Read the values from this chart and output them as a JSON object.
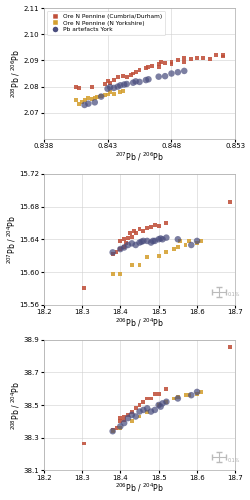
{
  "legend_labels": [
    "Ore N Pennine (Cumbria/Durham)",
    "Ore N Pennine (N Yorkshire)",
    "Pb artefacts York"
  ],
  "colors": {
    "cumbria": "#c0503a",
    "yorkshire": "#d4a030",
    "york": "#4a4e7e"
  },
  "marker_size_ore": 8,
  "marker_size_york": 22,
  "plot1": {
    "xlabel": "$^{207}$Pb / $^{206}$Pb",
    "ylabel": "$^{208}$Pb / $^{206}$Pb",
    "xlim": [
      0.838,
      0.853
    ],
    "ylim": [
      2.06,
      2.11
    ],
    "xticks": [
      0.838,
      0.843,
      0.848,
      0.853
    ],
    "yticks": [
      2.07,
      2.08,
      2.09,
      2.1,
      2.11
    ],
    "cumbria_x": [
      0.8405,
      0.8408,
      0.8418,
      0.8428,
      0.843,
      0.8432,
      0.8435,
      0.8438,
      0.8442,
      0.8445,
      0.8448,
      0.845,
      0.8452,
      0.8455,
      0.846,
      0.8462,
      0.8465,
      0.847,
      0.847,
      0.8472,
      0.8475,
      0.848,
      0.848,
      0.8485,
      0.849,
      0.849,
      0.8495,
      0.85,
      0.8505,
      0.851,
      0.8515,
      0.852,
      0.852
    ],
    "cumbria_y": [
      2.08,
      2.0795,
      2.0798,
      2.081,
      2.082,
      2.0815,
      2.0825,
      2.0835,
      2.084,
      2.0838,
      2.0845,
      2.085,
      2.0855,
      2.0865,
      2.087,
      2.0875,
      2.088,
      2.0875,
      2.0888,
      2.0895,
      2.089,
      2.0885,
      2.0895,
      2.09,
      2.0895,
      2.091,
      2.0905,
      2.0908,
      2.091,
      2.0905,
      2.092,
      2.0915,
      2.092
    ],
    "yorkshire_x": [
      0.8405,
      0.8408,
      0.841,
      0.8412,
      0.8415,
      0.8418,
      0.842,
      0.8422,
      0.8425,
      0.8428,
      0.843,
      0.8432,
      0.8435,
      0.844,
      0.8442
    ],
    "yorkshire_y": [
      2.0748,
      2.0735,
      2.074,
      2.075,
      2.0755,
      2.0752,
      2.0758,
      2.076,
      2.0765,
      2.0768,
      2.077,
      2.0778,
      2.0772,
      2.0778,
      2.0782
    ],
    "york_x": [
      0.8412,
      0.8415,
      0.842,
      0.8425,
      0.843,
      0.8432,
      0.8435,
      0.8438,
      0.844,
      0.8443,
      0.8445,
      0.845,
      0.8452,
      0.8455,
      0.846,
      0.8462,
      0.847,
      0.8475,
      0.848,
      0.8485,
      0.849
    ],
    "york_y": [
      2.073,
      2.0735,
      2.074,
      2.0762,
      2.0792,
      2.0798,
      2.0795,
      2.08,
      2.0805,
      2.0808,
      2.081,
      2.0815,
      2.082,
      2.0818,
      2.0825,
      2.0828,
      2.0838,
      2.084,
      2.085,
      2.0855,
      2.086
    ]
  },
  "plot2": {
    "xlabel": "$^{206}$Pb / $^{204}$Pb",
    "ylabel": "$^{207}$Pb / $^{204}$Pb",
    "xlim": [
      18.2,
      18.7
    ],
    "ylim": [
      15.56,
      15.72
    ],
    "xticks": [
      18.2,
      18.3,
      18.4,
      18.5,
      18.6,
      18.7
    ],
    "yticks": [
      15.56,
      15.6,
      15.64,
      15.68,
      15.72
    ],
    "cumbria_x": [
      18.305,
      18.38,
      18.39,
      18.4,
      18.4,
      18.41,
      18.41,
      18.415,
      18.42,
      18.425,
      18.43,
      18.435,
      18.44,
      18.45,
      18.46,
      18.47,
      18.48,
      18.49,
      18.5,
      18.52,
      18.685
    ],
    "cumbria_y": [
      15.58,
      15.622,
      15.625,
      15.628,
      15.638,
      15.63,
      15.64,
      15.635,
      15.642,
      15.648,
      15.643,
      15.65,
      15.648,
      15.652,
      15.65,
      15.654,
      15.655,
      15.658,
      15.656,
      15.66,
      15.685
    ],
    "yorkshire_x": [
      18.38,
      18.4,
      18.43,
      18.45,
      18.47,
      18.5,
      18.52,
      18.54,
      18.55,
      18.555,
      18.57,
      18.58,
      18.6,
      18.61
    ],
    "yorkshire_y": [
      15.598,
      15.598,
      15.608,
      15.608,
      15.618,
      15.62,
      15.625,
      15.628,
      15.63,
      15.638,
      15.633,
      15.638,
      15.636,
      15.638
    ],
    "york_x": [
      18.38,
      18.4,
      18.41,
      18.42,
      18.43,
      18.44,
      18.45,
      18.455,
      18.46,
      18.47,
      18.48,
      18.485,
      18.49,
      18.5,
      18.505,
      18.51,
      18.52,
      18.55,
      18.585,
      18.6
    ],
    "york_y": [
      15.624,
      15.628,
      15.63,
      15.633,
      15.635,
      15.633,
      15.636,
      15.637,
      15.638,
      15.638,
      15.636,
      15.638,
      15.638,
      15.64,
      15.641,
      15.64,
      15.642,
      15.64,
      15.633,
      15.638
    ]
  },
  "plot3": {
    "xlabel": "$^{206}$Pb / $^{204}$Pb",
    "ylabel": "$^{208}$Pb / $^{204}$Pb",
    "xlim": [
      18.2,
      18.7
    ],
    "ylim": [
      38.1,
      38.9
    ],
    "xticks": [
      18.2,
      18.3,
      18.4,
      18.5,
      18.6,
      18.7
    ],
    "yticks": [
      38.1,
      38.3,
      38.5,
      38.7,
      38.9
    ],
    "cumbria_x": [
      18.305,
      18.38,
      18.39,
      18.4,
      18.4,
      18.41,
      18.41,
      18.42,
      18.43,
      18.44,
      18.45,
      18.46,
      18.47,
      18.48,
      18.49,
      18.5,
      18.52,
      18.685
    ],
    "cumbria_y": [
      38.265,
      38.35,
      38.36,
      38.4,
      38.42,
      38.41,
      38.43,
      38.44,
      38.46,
      38.48,
      38.5,
      38.52,
      38.54,
      38.54,
      38.57,
      38.57,
      38.6,
      38.855
    ],
    "yorkshire_x": [
      18.38,
      18.4,
      18.43,
      18.45,
      18.47,
      18.5,
      18.52,
      18.54,
      18.55,
      18.57,
      18.58,
      18.6,
      18.61
    ],
    "yorkshire_y": [
      38.34,
      38.36,
      38.4,
      38.43,
      38.46,
      38.5,
      38.52,
      38.54,
      38.55,
      38.56,
      38.56,
      38.57,
      38.58
    ],
    "york_x": [
      18.38,
      18.4,
      18.41,
      18.42,
      18.43,
      18.44,
      18.45,
      18.46,
      18.47,
      18.48,
      18.49,
      18.5,
      18.505,
      18.51,
      18.52,
      18.55,
      18.585,
      18.6
    ],
    "york_y": [
      38.34,
      38.37,
      38.39,
      38.42,
      38.44,
      38.43,
      38.46,
      38.47,
      38.48,
      38.46,
      38.47,
      38.5,
      38.49,
      38.51,
      38.52,
      38.54,
      38.56,
      38.58
    ]
  }
}
